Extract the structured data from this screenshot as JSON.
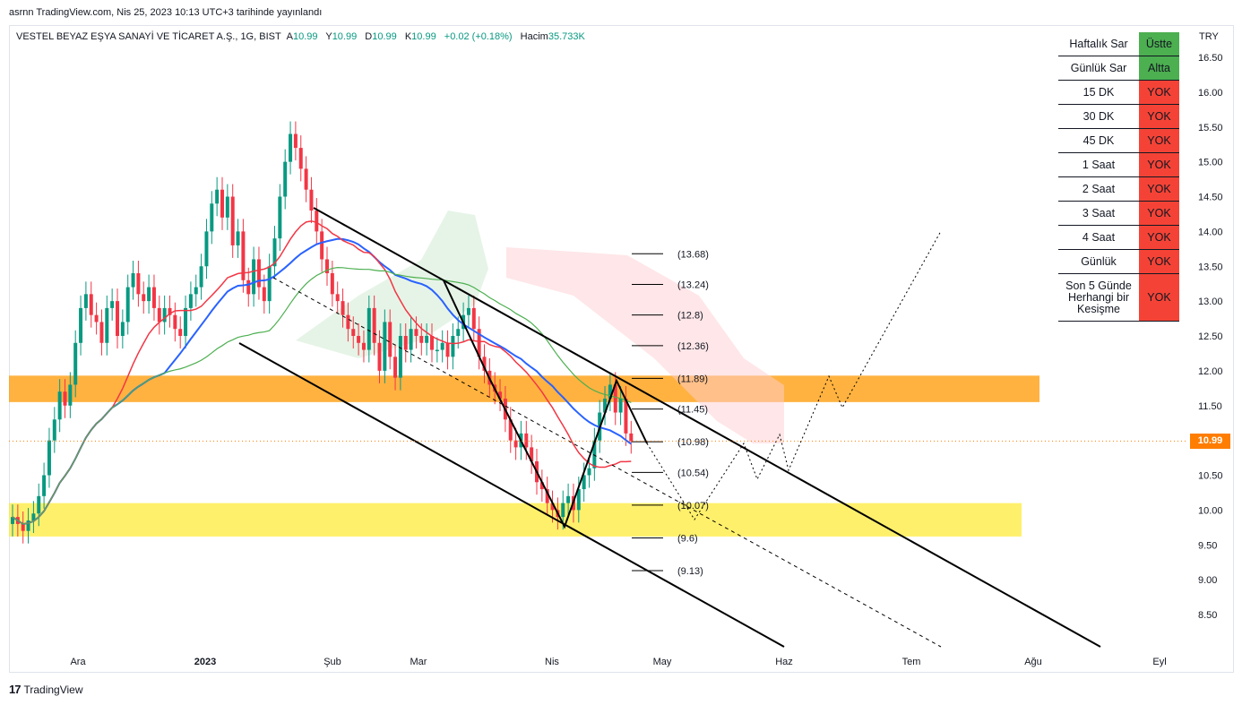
{
  "header_note": "asrnn TradingView.com, Nis 25, 2023 10:13 UTC+3 tarihinde yayınlandı",
  "legend": {
    "symbol": "VESTEL BEYAZ EŞYA SANAYİ VE TİCARET A.Ş., 1G, BIST",
    "o_label": "A",
    "o": "10.99",
    "h_label": "Y",
    "h": "10.99",
    "l_label": "D",
    "l": "10.99",
    "c_label": "K",
    "c": "10.99",
    "change": "+0.02 (+0.18%)",
    "vol_label": "Hacim",
    "vol": "35.733K"
  },
  "currency": "TRY",
  "last_price": "10.99",
  "brand": "TradingView",
  "signal_table": {
    "rows": [
      {
        "label": "Haftalık Sar",
        "value": "Üstte",
        "color": "#4caf50"
      },
      {
        "label": "Günlük Sar",
        "value": "Altta",
        "color": "#4caf50"
      },
      {
        "label": "15 DK",
        "value": "YOK",
        "color": "#f44336"
      },
      {
        "label": "30 DK",
        "value": "YOK",
        "color": "#f44336"
      },
      {
        "label": "45 DK",
        "value": "YOK",
        "color": "#f44336"
      },
      {
        "label": "1 Saat",
        "value": "YOK",
        "color": "#f44336"
      },
      {
        "label": "2 Saat",
        "value": "YOK",
        "color": "#f44336"
      },
      {
        "label": "3 Saat",
        "value": "YOK",
        "color": "#f44336"
      },
      {
        "label": "4 Saat",
        "value": "YOK",
        "color": "#f44336"
      },
      {
        "label": "Günlük",
        "value": "YOK",
        "color": "#f44336"
      },
      {
        "label": "Son 5 Günde Herhangi bir Kesişme",
        "value": "YOK",
        "color": "#f44336"
      }
    ]
  },
  "chart_data": {
    "type": "candlestick",
    "ylim": [
      8.2,
      16.8
    ],
    "y_ticks": [
      "16.50",
      "16.00",
      "15.50",
      "15.00",
      "14.50",
      "14.00",
      "13.50",
      "13.00",
      "12.50",
      "12.00",
      "11.50",
      "11.00",
      "10.50",
      "10.00",
      "9.50",
      "9.00",
      "8.50"
    ],
    "x_ticks": [
      "Ara",
      "2023",
      "Şub",
      "Mar",
      "Nis",
      "May",
      "Haz",
      "Tem",
      "Ağu",
      "Eyl"
    ],
    "level_labels": [
      "(13.68)",
      "(13.24)",
      "(12.8)",
      "(12.36)",
      "(11.89)",
      "(11.45)",
      "(10.98)",
      "(10.54)",
      "(10.07)",
      "(9.6)",
      "(9.13)"
    ],
    "levels": [
      13.68,
      13.24,
      12.8,
      12.36,
      11.89,
      11.45,
      10.98,
      10.54,
      10.07,
      9.6,
      9.13
    ],
    "zones": [
      {
        "name": "resistance",
        "from": 11.55,
        "to": 11.93,
        "color": "#ff9800"
      },
      {
        "name": "support",
        "from": 9.62,
        "to": 10.1,
        "color": "#ffeb3b"
      }
    ],
    "colors": {
      "up": "#089981",
      "down": "#f23645",
      "ma_blue": "#2962ff",
      "ma_red": "#f23645",
      "ma_green": "#4caf50"
    },
    "closes": [
      9.9,
      9.8,
      9.7,
      9.85,
      9.95,
      10.2,
      10.5,
      11.0,
      11.3,
      11.7,
      11.5,
      11.8,
      12.4,
      12.9,
      13.1,
      12.8,
      12.7,
      12.4,
      12.9,
      13.0,
      12.5,
      12.7,
      13.2,
      13.4,
      13.1,
      13.0,
      13.2,
      12.9,
      12.7,
      12.9,
      12.8,
      12.6,
      12.5,
      12.9,
      13.1,
      13.2,
      13.5,
      14.0,
      14.4,
      14.6,
      14.2,
      14.5,
      13.8,
      14.0,
      13.3,
      13.1,
      13.6,
      13.2,
      13.0,
      13.5,
      13.9,
      14.5,
      15.0,
      15.4,
      15.2,
      14.9,
      14.6,
      14.3,
      14.0,
      13.6,
      13.4,
      13.1,
      13.0,
      12.8,
      12.6,
      12.5,
      12.4,
      12.3,
      12.9,
      12.4,
      12.0,
      12.7,
      12.2,
      11.9,
      12.5,
      12.3,
      12.6,
      12.5,
      12.4,
      12.5,
      12.3,
      12.3,
      12.4,
      12.2,
      12.5,
      12.6,
      12.8,
      12.9,
      12.6,
      12.2,
      12.0,
      11.8,
      11.7,
      11.6,
      11.3,
      11.0,
      10.9,
      11.1,
      10.9,
      10.7,
      10.4,
      10.3,
      10.1,
      10.0,
      9.9,
      10.1,
      10.2,
      10.0,
      10.3,
      10.5,
      10.6,
      11.0,
      11.4,
      11.6,
      11.8,
      11.4,
      11.6,
      11.1,
      10.99
    ]
  }
}
